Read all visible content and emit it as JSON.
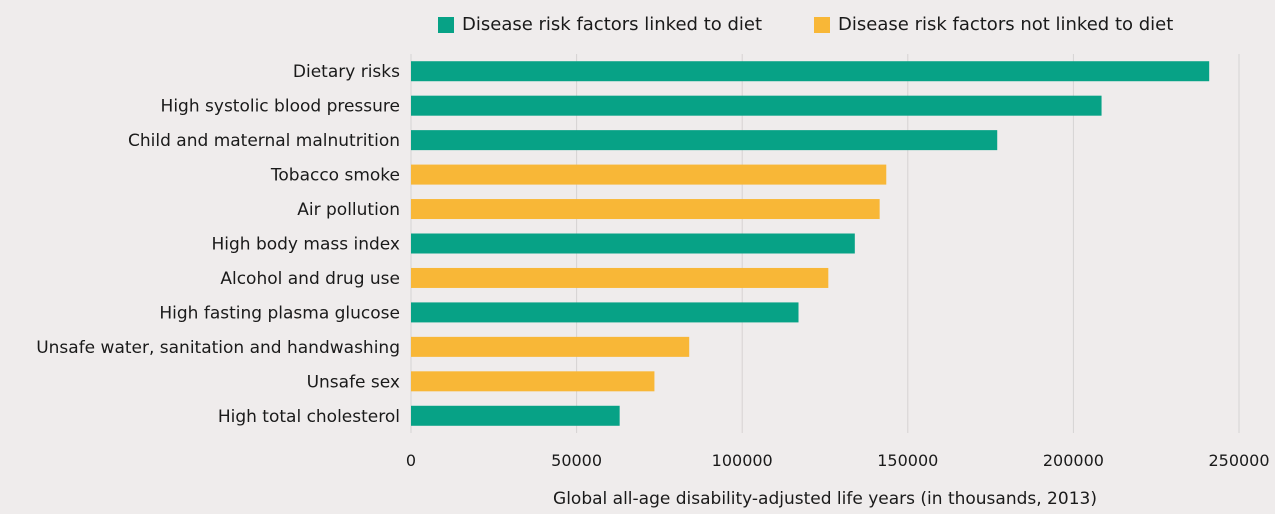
{
  "colors": {
    "background": "#efecec",
    "diet": "#07a286",
    "not_diet": "#f8b737",
    "grid": "#d6d3d3"
  },
  "chart_data": {
    "type": "bar",
    "orientation": "horizontal",
    "xlabel": "Global all-age disability-adjusted life years (in thousands, 2013)",
    "xlim": [
      0,
      250000
    ],
    "xticks": [
      0,
      50000,
      100000,
      150000,
      200000,
      250000
    ],
    "grid": true,
    "legend_position": "top",
    "legend": [
      {
        "label": "Disease risk factors linked to diet",
        "group": "diet",
        "color": "#07a286"
      },
      {
        "label": "Disease risk factors not linked to diet",
        "group": "not_diet",
        "color": "#f8b737"
      }
    ],
    "categories": [
      "Dietary risks",
      "High systolic blood pressure",
      "Child and maternal malnutrition",
      "Tobacco smoke",
      "Air pollution",
      "High body mass index",
      "Alcohol and drug use",
      "High fasting plasma glucose",
      "Unsafe water, sanitation and handwashing",
      "Unsafe sex",
      "High total cholesterol"
    ],
    "values": [
      241000,
      208500,
      177000,
      143500,
      141500,
      134000,
      126000,
      117000,
      84000,
      73500,
      63000
    ],
    "groups": [
      "diet",
      "diet",
      "diet",
      "not_diet",
      "not_diet",
      "diet",
      "not_diet",
      "diet",
      "not_diet",
      "not_diet",
      "diet"
    ]
  }
}
